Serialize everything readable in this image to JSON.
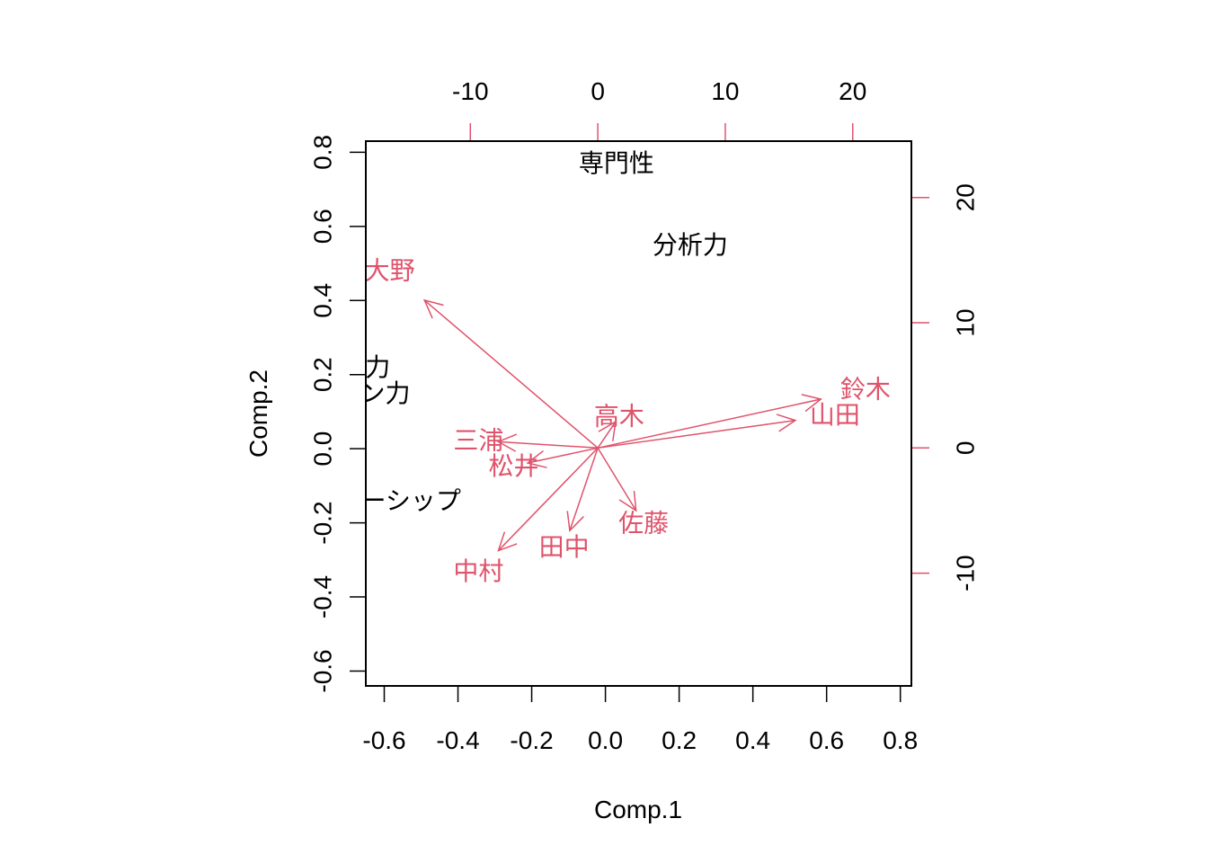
{
  "chart_data": {
    "type": "scatter",
    "subtype": "biplot",
    "xlabel": "Comp.1",
    "ylabel": "Comp.2",
    "xlim": [
      -0.65,
      0.83
    ],
    "ylim": [
      -0.64,
      0.83
    ],
    "secondary_xlim": [
      -18.2,
      24.6
    ],
    "secondary_ylim": [
      -19.0,
      24.5
    ],
    "x_ticks": [
      "-0.6",
      "-0.4",
      "-0.2",
      "0.0",
      "0.2",
      "0.4",
      "0.6",
      "0.8"
    ],
    "x_tick_values": [
      -0.6,
      -0.4,
      -0.2,
      0.0,
      0.2,
      0.4,
      0.6,
      0.8
    ],
    "y_ticks": [
      "-0.6",
      "-0.4",
      "-0.2",
      "0.0",
      "0.2",
      "0.4",
      "0.6",
      "0.8"
    ],
    "y_tick_values": [
      -0.6,
      -0.4,
      -0.2,
      0.0,
      0.2,
      0.4,
      0.6,
      0.8
    ],
    "top_ticks": [
      "-10",
      "0",
      "10",
      "20"
    ],
    "top_tick_values": [
      -10,
      0,
      10,
      20
    ],
    "right_ticks": [
      "-10",
      "0",
      "10",
      "20"
    ],
    "right_tick_values": [
      -10,
      0,
      10,
      20
    ],
    "observations": [
      {
        "label": "専門性",
        "x": 0.03,
        "y": 0.77
      },
      {
        "label": "分析力",
        "x": 0.23,
        "y": 0.55
      },
      {
        "label": "コミュ力",
        "x": -0.72,
        "y": 0.22
      },
      {
        "label": "プレゼン力",
        "x": -0.7,
        "y": 0.15
      },
      {
        "label": "リーダーシップ",
        "x": -0.63,
        "y": -0.14
      }
    ],
    "variables": [
      {
        "label": "大野",
        "x": -13.6,
        "y": 11.8
      },
      {
        "label": "鈴木",
        "x": 17.5,
        "y": 3.9
      },
      {
        "label": "山田",
        "x": 15.5,
        "y": 2.2
      },
      {
        "label": "高木",
        "x": 1.4,
        "y": 2.1
      },
      {
        "label": "三浦",
        "x": -7.8,
        "y": 0.5
      },
      {
        "label": "松井",
        "x": -5.5,
        "y": -1.2
      },
      {
        "label": "佐藤",
        "x": 3.0,
        "y": -5.0
      },
      {
        "label": "田中",
        "x": -2.2,
        "y": -6.6
      },
      {
        "label": "中村",
        "x": -7.8,
        "y": -8.2
      }
    ],
    "colors": {
      "observations": "#000000",
      "variables": "#DF536B",
      "axes": "#000000"
    }
  }
}
